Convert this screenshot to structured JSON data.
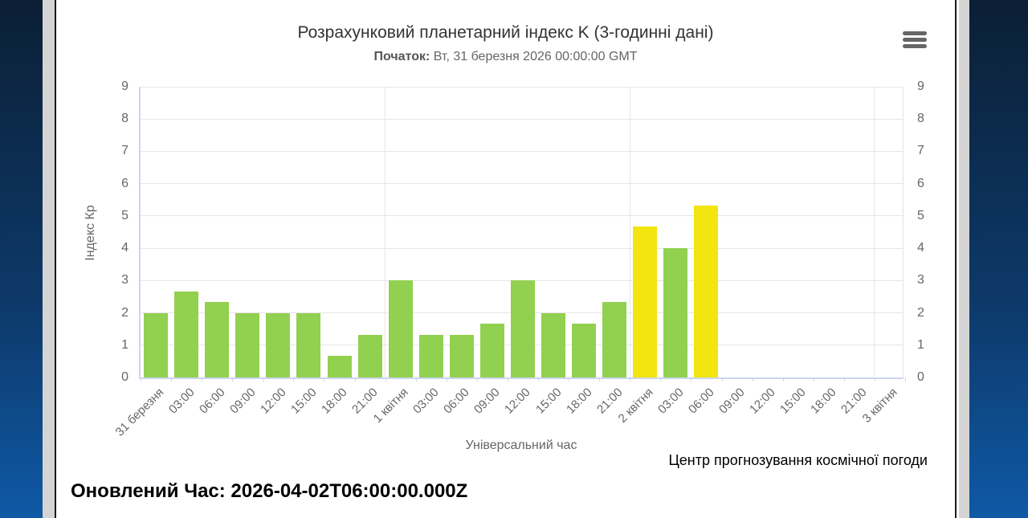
{
  "chart": {
    "title": "Розрахунковий планетарний індекс K (3-годинні дані)",
    "subtitle_label": "Початок:",
    "subtitle_value": " Вт, 31 березня 2026 00:00:00 GMT",
    "menu_icon": "hamburger-icon"
  },
  "chart_data": {
    "type": "bar",
    "title": "Розрахунковий планетарний індекс K (3-годинні дані)",
    "subtitle": "Початок: Вт, 31 березня 2026 00:00:00 GMT",
    "xlabel": "Універсальний час",
    "ylabel": "Індекс Кр",
    "ylim": [
      0,
      9
    ],
    "yticks": [
      0,
      1,
      2,
      3,
      4,
      5,
      6,
      7,
      8,
      9
    ],
    "grid": true,
    "legend": "none",
    "categories": [
      "31 березня",
      "03:00",
      "06:00",
      "09:00",
      "12:00",
      "15:00",
      "18:00",
      "21:00",
      "1 квітня",
      "03:00",
      "06:00",
      "09:00",
      "12:00",
      "15:00",
      "18:00",
      "21:00",
      "2 квітня",
      "03:00",
      "06:00",
      "09:00",
      "12:00",
      "15:00",
      "18:00",
      "21:00",
      "3 квітня"
    ],
    "values": [
      2,
      2.67,
      2.33,
      2,
      2,
      2,
      0.67,
      1.33,
      3,
      1.33,
      1.33,
      1.67,
      3,
      2,
      1.67,
      2.33,
      4.67,
      4,
      5.33
    ],
    "bar_colors": [
      "green",
      "green",
      "green",
      "green",
      "green",
      "green",
      "green",
      "green",
      "green",
      "green",
      "green",
      "green",
      "green",
      "green",
      "green",
      "green",
      "yellow",
      "green",
      "yellow"
    ],
    "palette": {
      "green": "#92d050",
      "yellow": "#f3e50f"
    },
    "day_boundary_indices": [
      8,
      16,
      24
    ],
    "gridline_color": "#e6e6e6",
    "axis_color": "#ccd6eb"
  },
  "footer": {
    "xaxis_title": "Універсальний час",
    "credit": "Центр прогнозування космічної погоди",
    "updated": "Оновлений Час: 2026-04-02T06:00:00.000Z"
  }
}
